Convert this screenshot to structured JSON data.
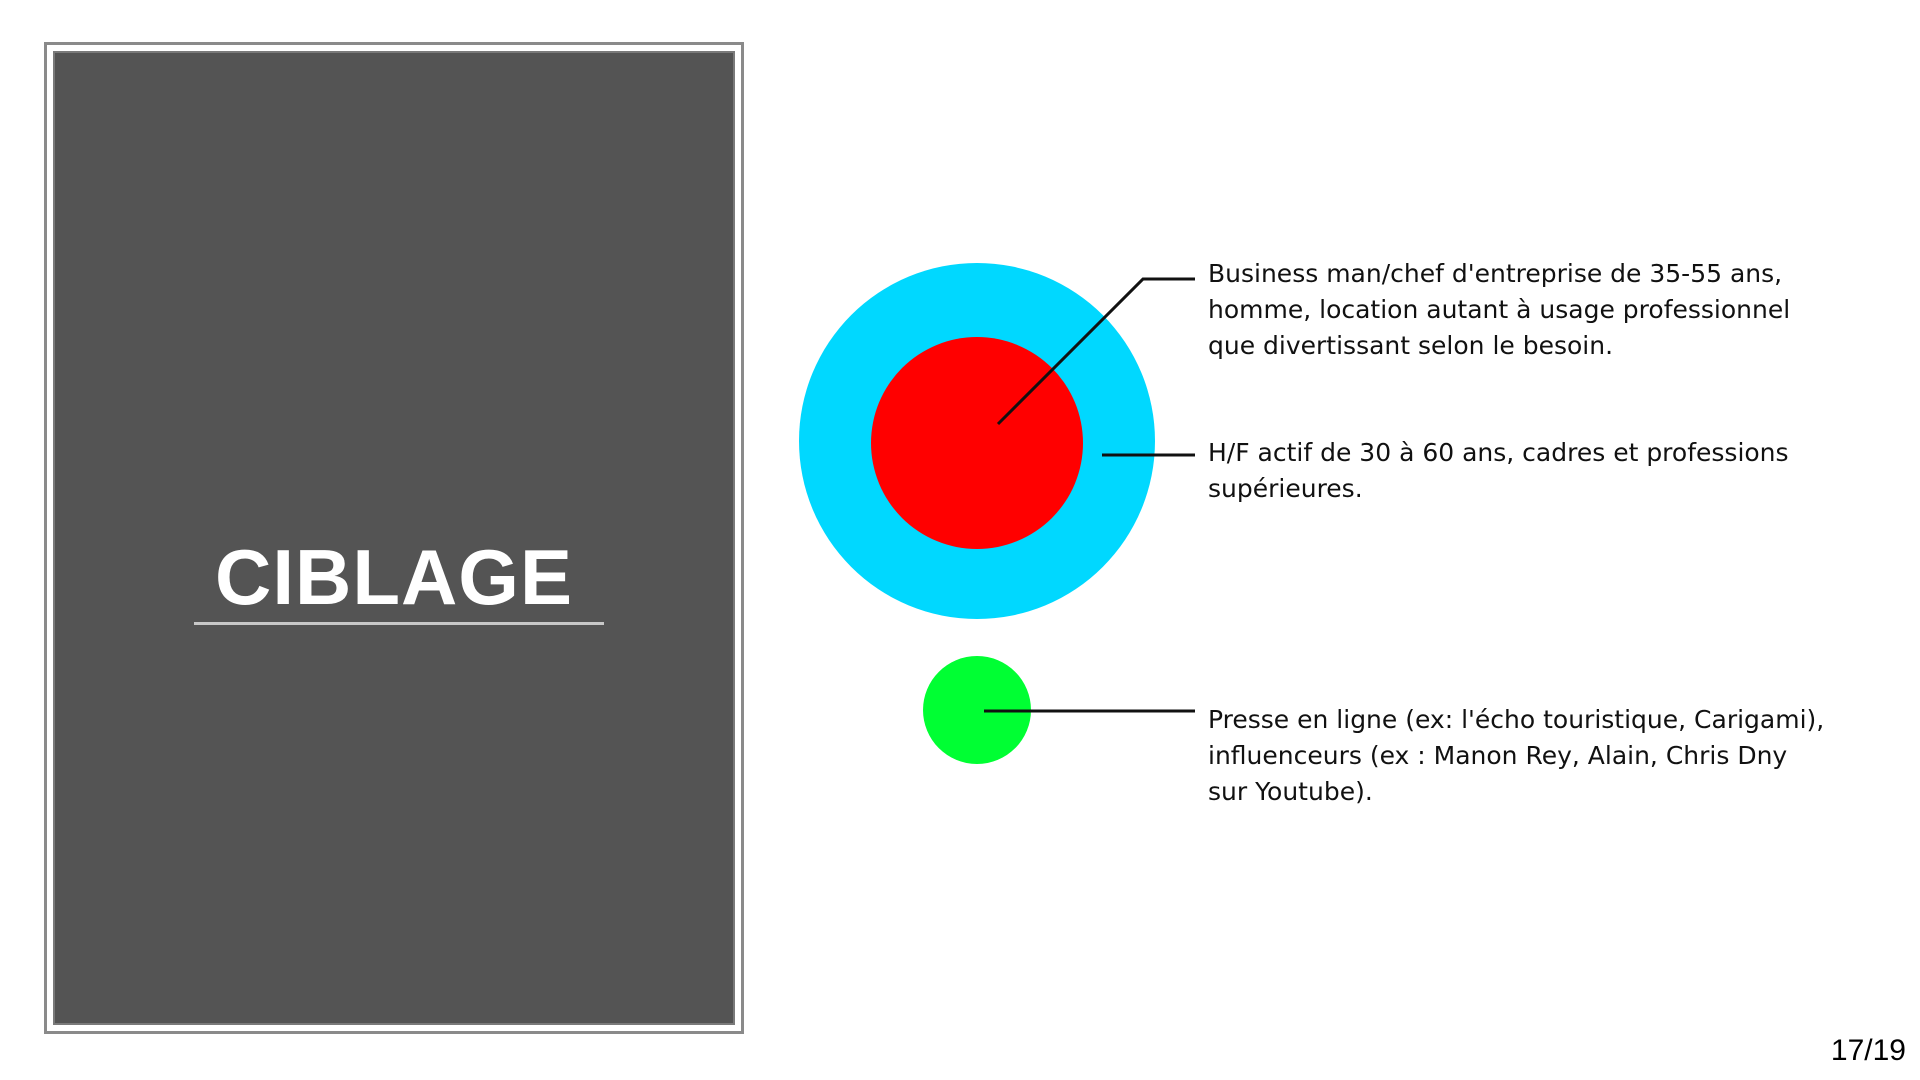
{
  "slide": {
    "title": "CIBLAGE",
    "page_number": "17/19"
  },
  "targets": {
    "core": {
      "label": "Business man/chef d'entreprise de 35-55 ans, homme, location autant à usage professionnel que divertissant selon le besoin.",
      "color": "#ff0000"
    },
    "outer": {
      "label": "H/F actif de 30 à 60 ans, cadres et professions supérieures.",
      "color": "#00d8ff"
    },
    "press": {
      "label": "Presse en ligne (ex: l'écho touristique, Carigami), influenceurs (ex : Manon Rey, Alain, Chris Dny sur Youtube).",
      "color": "#00ff33"
    }
  },
  "theme": {
    "panel_background": "#545454",
    "panel_border": "#8a8a8a",
    "title_color": "#ffffff"
  }
}
